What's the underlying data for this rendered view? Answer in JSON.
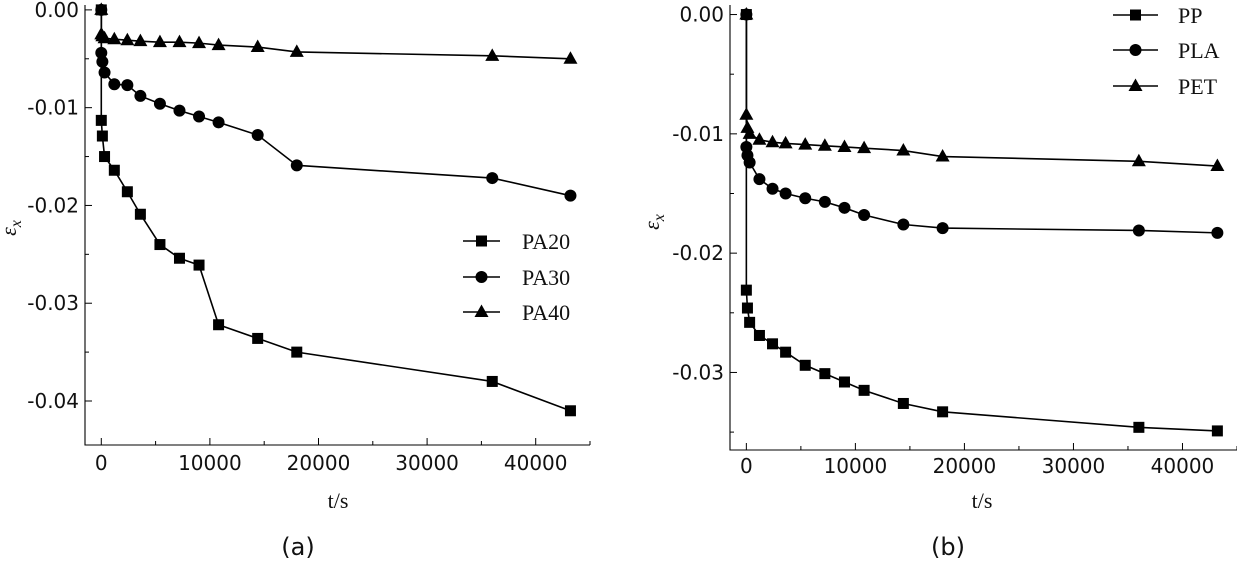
{
  "chart_data": [
    {
      "panel_label": "(a)",
      "type": "line",
      "xlabel": "t/s",
      "ylabel": "ε",
      "ylabel_sub": "x",
      "xlim": [
        -1500,
        45000
      ],
      "ylim": [
        -0.0445,
        0.0005
      ],
      "xticks": [
        0,
        10000,
        20000,
        30000,
        40000
      ],
      "xtick_labels": [
        "0",
        "10000",
        "20000",
        "30000",
        "40000"
      ],
      "yticks": [
        0,
        -0.01,
        -0.02,
        -0.03,
        -0.04
      ],
      "ytick_labels": [
        "0.00",
        "-0.01",
        "-0.02",
        "-0.03",
        "-0.04"
      ],
      "legend_position": "center-right",
      "series": [
        {
          "name": "PA20",
          "marker": "square",
          "x": [
            0,
            0,
            100,
            300,
            1200,
            2400,
            3600,
            5400,
            7200,
            9000,
            10800,
            14400,
            18000,
            36000,
            43200
          ],
          "y": [
            0,
            -0.0113,
            -0.0129,
            -0.015,
            -0.0164,
            -0.0186,
            -0.0209,
            -0.024,
            -0.0254,
            -0.0261,
            -0.0322,
            -0.0336,
            -0.035,
            -0.038,
            -0.041
          ]
        },
        {
          "name": "PA30",
          "marker": "circle",
          "x": [
            0,
            0,
            100,
            300,
            1200,
            2400,
            3600,
            5400,
            7200,
            9000,
            10800,
            14400,
            18000,
            36000,
            43200
          ],
          "y": [
            0,
            -0.0044,
            -0.0053,
            -0.0064,
            -0.0076,
            -0.0077,
            -0.0088,
            -0.0096,
            -0.0103,
            -0.0109,
            -0.0115,
            -0.0128,
            -0.0159,
            -0.0172,
            -0.019
          ]
        },
        {
          "name": "PA40",
          "marker": "triangle",
          "x": [
            0,
            0,
            100,
            300,
            1200,
            2400,
            3600,
            5400,
            7200,
            9000,
            10800,
            14400,
            18000,
            36000,
            43200
          ],
          "y": [
            0,
            -0.0025,
            -0.0027,
            -0.0029,
            -0.003,
            -0.0031,
            -0.0032,
            -0.0033,
            -0.0033,
            -0.0034,
            -0.0036,
            -0.0038,
            -0.0043,
            -0.0047,
            -0.005
          ]
        }
      ]
    },
    {
      "panel_label": "(b)",
      "type": "line",
      "xlabel": "t/s",
      "ylabel": "ε",
      "ylabel_sub": "x",
      "xlim": [
        -1500,
        45000
      ],
      "ylim": [
        -0.0365,
        0.0008
      ],
      "xticks": [
        0,
        10000,
        20000,
        30000,
        40000
      ],
      "xtick_labels": [
        "0",
        "10000",
        "20000",
        "30000",
        "40000"
      ],
      "yticks": [
        0,
        -0.01,
        -0.02,
        -0.03
      ],
      "ytick_labels": [
        "0.00",
        "-0.01",
        "-0.02",
        "-0.03"
      ],
      "legend_position": "top-right",
      "series": [
        {
          "name": "PP",
          "marker": "square",
          "x": [
            0,
            0,
            100,
            300,
            1200,
            2400,
            3600,
            5400,
            7200,
            9000,
            10800,
            14400,
            18000,
            36000,
            43200
          ],
          "y": [
            0,
            -0.0231,
            -0.0246,
            -0.0258,
            -0.0269,
            -0.0276,
            -0.0283,
            -0.0294,
            -0.0301,
            -0.0308,
            -0.0315,
            -0.0326,
            -0.0333,
            -0.0346,
            -0.0349
          ]
        },
        {
          "name": "PLA",
          "marker": "circle",
          "x": [
            0,
            0,
            100,
            300,
            1200,
            2400,
            3600,
            5400,
            7200,
            9000,
            10800,
            14400,
            18000,
            36000,
            43200
          ],
          "y": [
            0,
            -0.0111,
            -0.0118,
            -0.0124,
            -0.0138,
            -0.0146,
            -0.015,
            -0.0154,
            -0.0157,
            -0.0162,
            -0.0168,
            -0.0176,
            -0.0179,
            -0.0181,
            -0.0183
          ]
        },
        {
          "name": "PET",
          "marker": "triangle",
          "x": [
            0,
            0,
            100,
            300,
            1200,
            2400,
            3600,
            5400,
            7200,
            9000,
            10800,
            14400,
            18000,
            36000,
            43200
          ],
          "y": [
            0,
            -0.0084,
            -0.0095,
            -0.01,
            -0.0105,
            -0.0107,
            -0.0108,
            -0.0109,
            -0.011,
            -0.0111,
            -0.0112,
            -0.0114,
            -0.0119,
            -0.0123,
            -0.0127
          ]
        }
      ]
    }
  ]
}
